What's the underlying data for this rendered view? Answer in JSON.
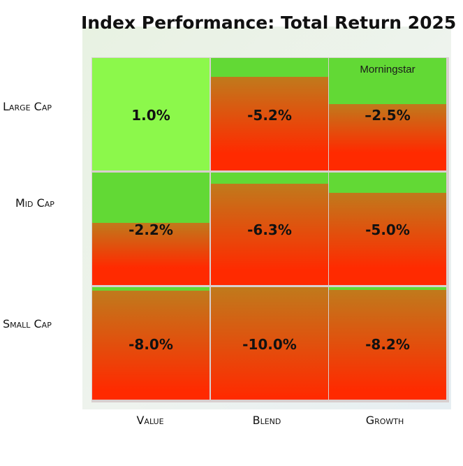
{
  "chart_data": {
    "type": "heatmap",
    "title": "Index Performance: Total Return 2025",
    "source": "Morningstar",
    "rows": [
      "Large Cap",
      "Mid Cap",
      "Small Cap"
    ],
    "columns": [
      "Value",
      "Blend",
      "Growth"
    ],
    "values": [
      [
        1.0,
        -5.2,
        -2.5
      ],
      [
        -2.2,
        -6.3,
        -5.0
      ],
      [
        -8.0,
        -10.0,
        -8.2
      ]
    ],
    "labels": [
      [
        "1.0%",
        "-5.2%",
        "–2.5%"
      ],
      [
        "-2.2%",
        "-6.3%",
        "-5.0%"
      ],
      [
        "-8.0%",
        "-10.0%",
        "-8.2%"
      ]
    ],
    "colors": {
      "positive": "#8cf84b",
      "green": "#62d935",
      "mid": "#c07a1c",
      "red": "#ff2a00"
    }
  }
}
